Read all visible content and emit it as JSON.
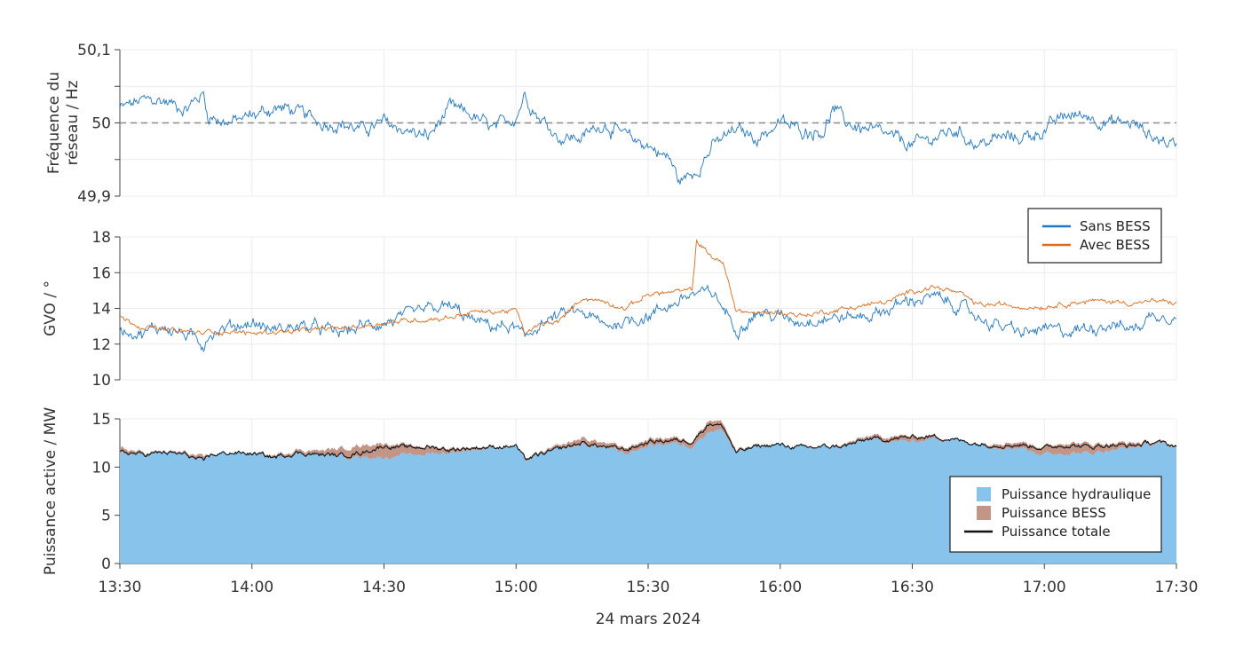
{
  "chart_data": {
    "type": "line",
    "xlabel": "24 mars 2024",
    "x_ticks": [
      "13:30",
      "14:00",
      "14:30",
      "15:00",
      "15:30",
      "16:00",
      "16:30",
      "17:00",
      "17:30"
    ],
    "x_range_minutes": [
      0,
      240
    ],
    "grid": "on",
    "panels": [
      {
        "id": "frequency",
        "ylabel_lines": [
          "Fréquence du",
          "réseau / Hz"
        ],
        "ylim": [
          49.9,
          50.1
        ],
        "y_ticks": [
          49.9,
          49.95,
          50,
          50.05,
          50.1
        ],
        "y_tick_labels": [
          "49,9",
          "",
          "50",
          "",
          "50,1"
        ],
        "reference_line": 50,
        "series": [
          {
            "name": "Sans BESS",
            "color": "#1f77c4",
            "x": [
              0,
              5,
              10,
              15,
              19,
              20,
              25,
              30,
              35,
              38,
              42,
              46,
              50,
              55,
              60,
              65,
              70,
              75,
              80,
              85,
              90,
              92,
              95,
              100,
              105,
              110,
              115,
              120,
              125,
              127,
              130,
              135,
              140,
              145,
              150,
              155,
              160,
              162,
              165,
              170,
              175,
              180,
              185,
              190,
              195,
              200,
              205,
              210,
              215,
              220,
              225,
              230,
              235,
              240
            ],
            "y": [
              50.02,
              50.03,
              50.03,
              50.02,
              50.04,
              50.01,
              50.0,
              50.01,
              50.02,
              50.02,
              50.01,
              50.0,
              50.0,
              49.99,
              50.0,
              49.99,
              49.98,
              50.02,
              50.01,
              49.99,
              50.01,
              50.04,
              50.01,
              49.98,
              49.98,
              50.0,
              49.98,
              49.97,
              49.95,
              49.92,
              49.93,
              49.97,
              49.99,
              49.98,
              50.0,
              49.99,
              49.99,
              50.02,
              50.0,
              49.99,
              49.98,
              49.97,
              49.98,
              49.99,
              49.97,
              49.98,
              49.98,
              49.99,
              50.01,
              50.01,
              50.0,
              50.0,
              49.98,
              49.97
            ]
          }
        ]
      },
      {
        "id": "gvo",
        "ylabel_lines": [
          "GVO / °"
        ],
        "ylim": [
          10,
          18
        ],
        "y_ticks": [
          10,
          12,
          14,
          16,
          18
        ],
        "y_tick_labels": [
          "10",
          "12",
          "14",
          "16",
          "18"
        ],
        "legend": {
          "placement": "top-right"
        },
        "series": [
          {
            "name": "Sans BESS",
            "color": "#1f77c4",
            "x": [
              0,
              5,
              10,
              15,
              19,
              20,
              25,
              30,
              35,
              40,
              45,
              50,
              55,
              60,
              65,
              70,
              75,
              80,
              85,
              90,
              92,
              95,
              100,
              105,
              110,
              115,
              120,
              125,
              130,
              135,
              140,
              145,
              150,
              155,
              160,
              165,
              170,
              175,
              180,
              185,
              190,
              195,
              200,
              205,
              210,
              215,
              220,
              225,
              230,
              235,
              240
            ],
            "y": [
              12.9,
              12.6,
              13.0,
              12.5,
              12.0,
              12.6,
              13.0,
              13.2,
              12.8,
              13.0,
              12.9,
              12.6,
              13.0,
              13.2,
              13.5,
              13.9,
              14.1,
              13.3,
              13.0,
              12.9,
              12.2,
              13.1,
              13.6,
              13.8,
              13.0,
              13.3,
              13.6,
              14.2,
              14.8,
              14.8,
              12.9,
              13.8,
              13.5,
              13.3,
              13.5,
              13.5,
              13.6,
              14.0,
              14.5,
              14.6,
              14.2,
              13.5,
              13.0,
              12.6,
              12.8,
              12.7,
              12.9,
              13.2,
              12.8,
              13.7,
              13.6
            ]
          },
          {
            "name": "Avec BESS",
            "color": "#e06a1a",
            "x": [
              0,
              5,
              10,
              15,
              19,
              20,
              25,
              30,
              35,
              40,
              45,
              50,
              55,
              60,
              65,
              70,
              75,
              80,
              85,
              90,
              92,
              95,
              100,
              105,
              110,
              115,
              120,
              125,
              130,
              131,
              134,
              137,
              140,
              145,
              150,
              155,
              160,
              165,
              170,
              175,
              180,
              185,
              190,
              195,
              200,
              205,
              210,
              215,
              220,
              225,
              230,
              235,
              240
            ],
            "y": [
              13.5,
              13.0,
              12.8,
              12.7,
              12.6,
              12.7,
              12.7,
              12.6,
              12.7,
              12.7,
              12.8,
              12.9,
              13.0,
              13.2,
              13.3,
              13.4,
              13.5,
              13.8,
              13.8,
              13.9,
              12.6,
              13.0,
              13.3,
              14.6,
              14.4,
              14.0,
              14.8,
              14.9,
              15.0,
              17.8,
              17.0,
              16.5,
              13.9,
              13.7,
              13.8,
              13.6,
              13.8,
              14.0,
              14.2,
              14.4,
              15.0,
              15.2,
              14.9,
              14.2,
              14.2,
              14.1,
              14.1,
              14.3,
              14.4,
              14.4,
              14.3,
              14.4,
              14.3
            ]
          }
        ]
      },
      {
        "id": "power",
        "ylabel_lines": [
          "Puissance active / MW"
        ],
        "ylim": [
          0,
          15
        ],
        "y_ticks": [
          0,
          5,
          10,
          15
        ],
        "y_tick_labels": [
          "0",
          "5",
          "10",
          "15"
        ],
        "legend": {
          "placement": "bottom-right"
        },
        "series": [
          {
            "name": "Puissance hydraulique",
            "kind": "area",
            "color": "#87c3ea",
            "x": [
              0,
              5,
              10,
              15,
              19,
              20,
              25,
              30,
              35,
              40,
              45,
              50,
              55,
              60,
              65,
              70,
              75,
              80,
              85,
              90,
              92,
              95,
              100,
              105,
              110,
              115,
              120,
              125,
              130,
              134,
              137,
              140,
              145,
              150,
              155,
              160,
              165,
              170,
              175,
              180,
              185,
              190,
              195,
              200,
              205,
              210,
              215,
              220,
              225,
              230,
              235,
              240
            ],
            "y": [
              11.4,
              11.3,
              11.5,
              11.2,
              10.4,
              11.2,
              11.5,
              11.4,
              11.0,
              11.5,
              11.3,
              11.1,
              11.1,
              11.0,
              11.2,
              11.4,
              11.5,
              11.8,
              12.0,
              12.2,
              10.6,
              11.2,
              11.8,
              12.3,
              12.0,
              11.4,
              12.2,
              12.5,
              12.2,
              13.8,
              13.8,
              11.4,
              12.2,
              12.3,
              12.0,
              12.1,
              12.2,
              12.8,
              12.7,
              12.6,
              13.0,
              12.8,
              12.4,
              12.1,
              12.0,
              11.3,
              11.5,
              11.4,
              11.8,
              12.0,
              12.4,
              12.1
            ]
          },
          {
            "name": "Puissance BESS",
            "kind": "area",
            "color": "#c39587",
            "x": [
              0,
              5,
              10,
              15,
              19,
              20,
              25,
              30,
              35,
              40,
              45,
              50,
              55,
              60,
              65,
              70,
              75,
              80,
              85,
              90,
              92,
              95,
              100,
              105,
              110,
              115,
              120,
              125,
              130,
              134,
              137,
              140,
              145,
              150,
              155,
              160,
              165,
              170,
              175,
              180,
              185,
              190,
              195,
              200,
              205,
              210,
              215,
              220,
              225,
              230,
              235,
              240
            ],
            "y": [
              0.6,
              0.2,
              0.1,
              0.3,
              0.5,
              0.1,
              0.0,
              0.1,
              0.2,
              0.3,
              0.4,
              0.8,
              1.2,
              1.5,
              1.0,
              0.8,
              0.5,
              0.3,
              0.2,
              0.0,
              0.3,
              0.2,
              0.4,
              0.7,
              0.5,
              0.6,
              0.7,
              0.6,
              0.6,
              1.2,
              0.8,
              0.3,
              0.1,
              0.0,
              0.1,
              0.0,
              0.2,
              0.4,
              0.5,
              0.6,
              0.3,
              0.0,
              0.1,
              0.5,
              0.6,
              0.8,
              1.1,
              1.0,
              0.7,
              0.5,
              0.2,
              0.2
            ]
          },
          {
            "name": "Puissance totale",
            "kind": "line",
            "color": "#111111",
            "x": [
              0,
              5,
              10,
              15,
              19,
              20,
              25,
              30,
              35,
              40,
              45,
              50,
              55,
              60,
              65,
              70,
              75,
              80,
              85,
              90,
              92,
              95,
              100,
              105,
              110,
              115,
              120,
              125,
              130,
              134,
              137,
              140,
              145,
              150,
              155,
              160,
              165,
              170,
              175,
              180,
              185,
              190,
              195,
              200,
              205,
              210,
              215,
              220,
              225,
              230,
              235,
              240
            ],
            "y": [
              11.6,
              11.3,
              11.5,
              11.3,
              10.5,
              11.2,
              11.5,
              11.4,
              11.0,
              11.5,
              11.3,
              11.2,
              11.5,
              12.2,
              12.0,
              12.1,
              11.8,
              12.0,
              12.1,
              12.2,
              10.8,
              11.2,
              11.9,
              12.5,
              12.1,
              11.8,
              12.6,
              12.8,
              12.7,
              14.6,
              14.2,
              11.5,
              12.2,
              12.3,
              12.0,
              12.1,
              12.2,
              12.9,
              12.9,
              13.1,
              13.2,
              12.8,
              12.4,
              12.3,
              12.3,
              12.0,
              12.3,
              12.1,
              12.3,
              12.2,
              12.6,
              12.2
            ]
          }
        ]
      }
    ]
  }
}
